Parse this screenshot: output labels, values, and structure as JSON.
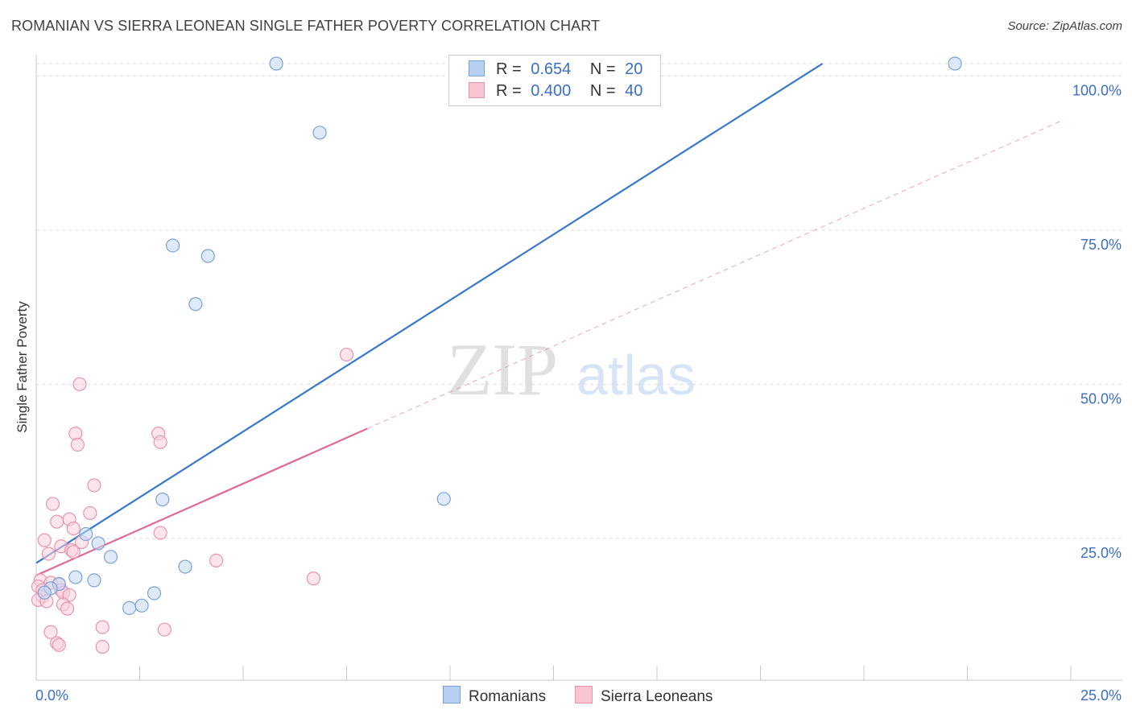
{
  "title": "ROMANIAN VS SIERRA LEONEAN SINGLE FATHER POVERTY CORRELATION CHART",
  "source": "Source: ZipAtlas.com",
  "watermark": {
    "zip": "ZIP",
    "atlas": "atlas"
  },
  "legend": {
    "rows": [
      {
        "r_label": "R =",
        "r_value": "0.654",
        "n_label": "N =",
        "n_value": "20",
        "color": "#7aa2d8"
      },
      {
        "r_label": "R =",
        "r_value": "0.400",
        "n_label": "N =",
        "n_value": "40",
        "color": "#e894ad"
      }
    ]
  },
  "bottom_legend": {
    "romanians": "Romanians",
    "sierra_leoneans": "Sierra Leoneans"
  },
  "chart_data": {
    "type": "scatter",
    "title": "ROMANIAN VS SIERRA LEONEAN SINGLE FATHER POVERTY CORRELATION CHART",
    "xlabel": "",
    "ylabel": "Single Father Poverty",
    "xlim": [
      0,
      25
    ],
    "ylim": [
      2,
      102
    ],
    "x_tick_labels": [
      "0.0%",
      "25.0%"
    ],
    "y_ticks": [
      25,
      50,
      75,
      100
    ],
    "y_tick_labels": [
      "25.0%",
      "50.0%",
      "75.0%",
      "100.0%"
    ],
    "grid": "horizontal dashed",
    "series": [
      {
        "name": "Romanians",
        "color": "#7aa2d8",
        "fill": "#c5d8f2",
        "line_color": "#3878cc",
        "trend": {
          "x": [
            0,
            19.0
          ],
          "y": [
            21.0,
            102
          ]
        },
        "points": [
          {
            "x": 5.8,
            "y": 102
          },
          {
            "x": 22.2,
            "y": 102
          },
          {
            "x": 6.85,
            "y": 90.8
          },
          {
            "x": 3.3,
            "y": 72.5
          },
          {
            "x": 4.15,
            "y": 70.8
          },
          {
            "x": 3.85,
            "y": 63.0
          },
          {
            "x": 3.05,
            "y": 31.3
          },
          {
            "x": 9.85,
            "y": 31.4
          },
          {
            "x": 1.2,
            "y": 25.7
          },
          {
            "x": 1.5,
            "y": 24.2
          },
          {
            "x": 1.8,
            "y": 22.0
          },
          {
            "x": 3.6,
            "y": 20.4
          },
          {
            "x": 0.95,
            "y": 18.7
          },
          {
            "x": 1.4,
            "y": 18.2
          },
          {
            "x": 0.55,
            "y": 17.6
          },
          {
            "x": 0.35,
            "y": 16.9
          },
          {
            "x": 0.2,
            "y": 16.2
          },
          {
            "x": 2.85,
            "y": 16.1
          },
          {
            "x": 2.55,
            "y": 14.1
          },
          {
            "x": 2.25,
            "y": 13.7
          }
        ]
      },
      {
        "name": "Sierra Leoneans",
        "color": "#e894ad",
        "fill": "#fbd0dc",
        "line_color": "#e06a93",
        "trend": {
          "x": [
            0,
            8.0
          ],
          "y": [
            19.0,
            42.8
          ]
        },
        "trend_dashed": {
          "x": [
            8.0,
            24.8
          ],
          "y": [
            42.8,
            92.8
          ]
        },
        "points": [
          {
            "x": 7.5,
            "y": 54.8
          },
          {
            "x": 1.05,
            "y": 50.0
          },
          {
            "x": 0.95,
            "y": 42.0
          },
          {
            "x": 2.95,
            "y": 42.0
          },
          {
            "x": 1.0,
            "y": 40.2
          },
          {
            "x": 3.0,
            "y": 40.6
          },
          {
            "x": 1.4,
            "y": 33.6
          },
          {
            "x": 0.4,
            "y": 30.6
          },
          {
            "x": 1.3,
            "y": 29.1
          },
          {
            "x": 0.8,
            "y": 28.1
          },
          {
            "x": 0.5,
            "y": 27.7
          },
          {
            "x": 0.9,
            "y": 26.6
          },
          {
            "x": 3.0,
            "y": 25.9
          },
          {
            "x": 0.2,
            "y": 24.7
          },
          {
            "x": 1.1,
            "y": 24.4
          },
          {
            "x": 0.6,
            "y": 23.7
          },
          {
            "x": 0.85,
            "y": 23.1
          },
          {
            "x": 0.3,
            "y": 22.5
          },
          {
            "x": 0.9,
            "y": 22.8
          },
          {
            "x": 4.35,
            "y": 21.4
          },
          {
            "x": 6.7,
            "y": 18.5
          },
          {
            "x": 0.1,
            "y": 18.2
          },
          {
            "x": 0.35,
            "y": 17.8
          },
          {
            "x": 0.55,
            "y": 17.5
          },
          {
            "x": 0.05,
            "y": 17.2
          },
          {
            "x": 0.6,
            "y": 16.6
          },
          {
            "x": 0.15,
            "y": 16.6
          },
          {
            "x": 0.65,
            "y": 16.2
          },
          {
            "x": 0.8,
            "y": 15.8
          },
          {
            "x": 0.15,
            "y": 15.6
          },
          {
            "x": 0.65,
            "y": 14.3
          },
          {
            "x": 0.75,
            "y": 13.6
          },
          {
            "x": 1.6,
            "y": 10.6
          },
          {
            "x": 3.1,
            "y": 10.2
          },
          {
            "x": 0.35,
            "y": 9.8
          },
          {
            "x": 0.5,
            "y": 8.0
          },
          {
            "x": 0.55,
            "y": 7.7
          },
          {
            "x": 1.6,
            "y": 7.4
          },
          {
            "x": 0.05,
            "y": 15.0
          },
          {
            "x": 0.25,
            "y": 14.8
          }
        ]
      }
    ]
  }
}
